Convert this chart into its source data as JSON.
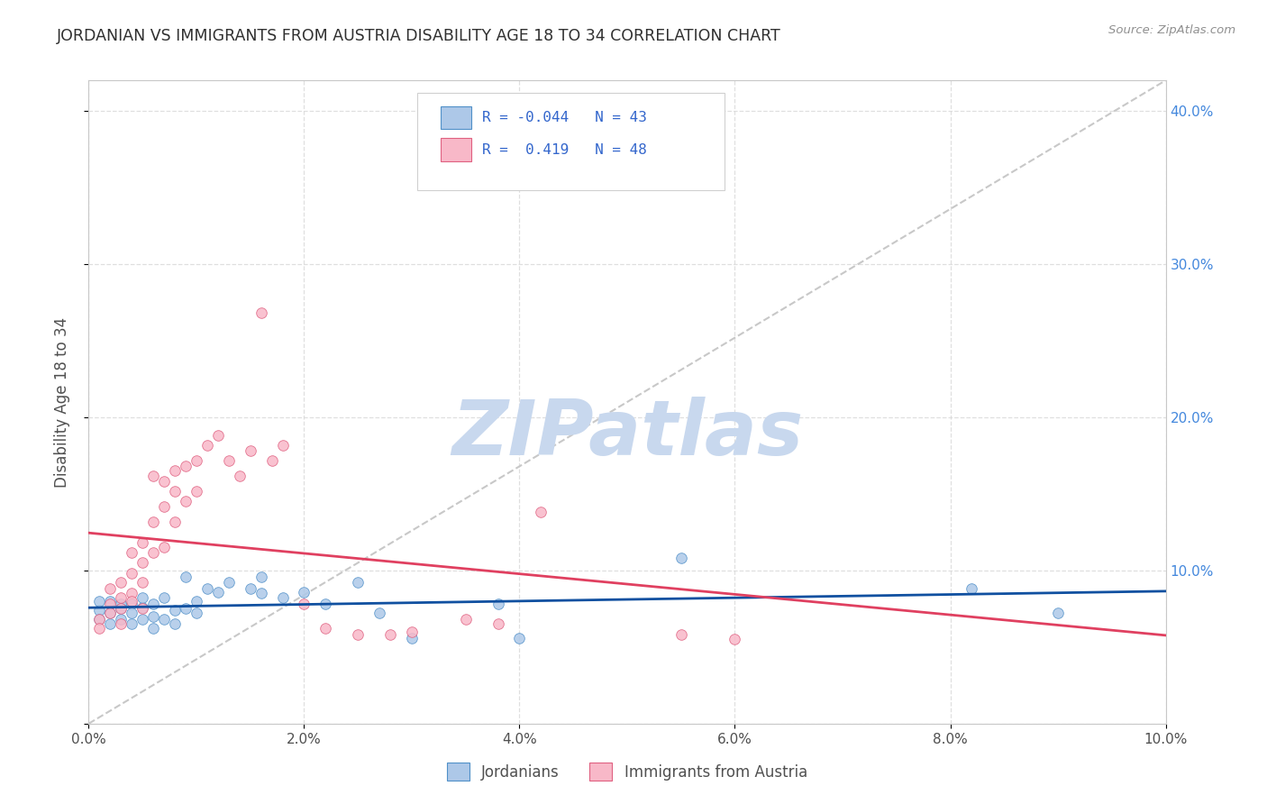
{
  "title": "JORDANIAN VS IMMIGRANTS FROM AUSTRIA DISABILITY AGE 18 TO 34 CORRELATION CHART",
  "source": "Source: ZipAtlas.com",
  "ylabel": "Disability Age 18 to 34",
  "xlim": [
    0.0,
    0.1
  ],
  "ylim": [
    0.0,
    0.42
  ],
  "xticks": [
    0.0,
    0.02,
    0.04,
    0.06,
    0.08,
    0.1
  ],
  "xticklabels": [
    "0.0%",
    "2.0%",
    "4.0%",
    "6.0%",
    "8.0%",
    "10.0%"
  ],
  "yticks_left": [
    0.0,
    0.1,
    0.2,
    0.3,
    0.4
  ],
  "yticklabels_left": [
    "",
    "",
    "",
    "",
    ""
  ],
  "yticks_right": [
    0.1,
    0.2,
    0.3,
    0.4
  ],
  "yticklabels_right": [
    "10.0%",
    "20.0%",
    "30.0%",
    "40.0%"
  ],
  "series": [
    {
      "name": "Jordanians",
      "color": "#adc8e8",
      "edge_color": "#5090c8",
      "line_color": "#1050a0",
      "R": -0.044,
      "N": 43,
      "points_x": [
        0.001,
        0.001,
        0.001,
        0.002,
        0.002,
        0.002,
        0.003,
        0.003,
        0.003,
        0.004,
        0.004,
        0.004,
        0.005,
        0.005,
        0.005,
        0.006,
        0.006,
        0.006,
        0.007,
        0.007,
        0.008,
        0.008,
        0.009,
        0.009,
        0.01,
        0.01,
        0.011,
        0.012,
        0.013,
        0.015,
        0.016,
        0.016,
        0.018,
        0.02,
        0.022,
        0.025,
        0.027,
        0.03,
        0.038,
        0.04,
        0.055,
        0.082,
        0.09
      ],
      "points_y": [
        0.074,
        0.068,
        0.08,
        0.072,
        0.08,
        0.065,
        0.078,
        0.068,
        0.075,
        0.078,
        0.065,
        0.072,
        0.076,
        0.068,
        0.082,
        0.07,
        0.078,
        0.062,
        0.082,
        0.068,
        0.074,
        0.065,
        0.096,
        0.075,
        0.08,
        0.072,
        0.088,
        0.086,
        0.092,
        0.088,
        0.096,
        0.085,
        0.082,
        0.086,
        0.078,
        0.092,
        0.072,
        0.056,
        0.078,
        0.056,
        0.108,
        0.088,
        0.072
      ]
    },
    {
      "name": "Immigrants from Austria",
      "color": "#f8b8c8",
      "edge_color": "#e06080",
      "line_color": "#e04060",
      "R": 0.419,
      "N": 48,
      "points_x": [
        0.001,
        0.001,
        0.002,
        0.002,
        0.002,
        0.003,
        0.003,
        0.003,
        0.003,
        0.004,
        0.004,
        0.004,
        0.004,
        0.005,
        0.005,
        0.005,
        0.005,
        0.006,
        0.006,
        0.006,
        0.007,
        0.007,
        0.007,
        0.008,
        0.008,
        0.008,
        0.009,
        0.009,
        0.01,
        0.01,
        0.011,
        0.012,
        0.013,
        0.014,
        0.015,
        0.016,
        0.017,
        0.018,
        0.02,
        0.022,
        0.025,
        0.028,
        0.03,
        0.035,
        0.038,
        0.042,
        0.055,
        0.06
      ],
      "points_y": [
        0.068,
        0.062,
        0.078,
        0.088,
        0.072,
        0.082,
        0.092,
        0.075,
        0.065,
        0.098,
        0.112,
        0.085,
        0.08,
        0.092,
        0.105,
        0.118,
        0.075,
        0.162,
        0.132,
        0.112,
        0.158,
        0.142,
        0.115,
        0.152,
        0.165,
        0.132,
        0.168,
        0.145,
        0.172,
        0.152,
        0.182,
        0.188,
        0.172,
        0.162,
        0.178,
        0.268,
        0.172,
        0.182,
        0.078,
        0.062,
        0.058,
        0.058,
        0.06,
        0.068,
        0.065,
        0.138,
        0.058,
        0.055
      ]
    }
  ],
  "legend_entries": [
    {
      "R_label": "R = ",
      "R_value": "-0.044",
      "N_label": "N = ",
      "N_value": "43",
      "color": "#adc8e8",
      "edge_color": "#5090c8"
    },
    {
      "R_label": "R = ",
      "R_value": " 0.419",
      "N_label": "N = ",
      "N_value": "48",
      "color": "#f8b8c8",
      "edge_color": "#e06080"
    }
  ],
  "ref_line_color": "#c8c8c8",
  "background_color": "#ffffff",
  "grid_color": "#d8d8d8",
  "title_color": "#303030",
  "axis_label_color": "#505050",
  "tick_color_x": "#505050",
  "tick_color_right": "#4488dd",
  "watermark_text": "ZIPatlas",
  "watermark_color": "#c8d8ee",
  "bottom_legend": [
    {
      "label": "Jordanians",
      "color": "#adc8e8",
      "edge_color": "#5090c8"
    },
    {
      "label": "Immigrants from Austria",
      "color": "#f8b8c8",
      "edge_color": "#e06080"
    }
  ]
}
